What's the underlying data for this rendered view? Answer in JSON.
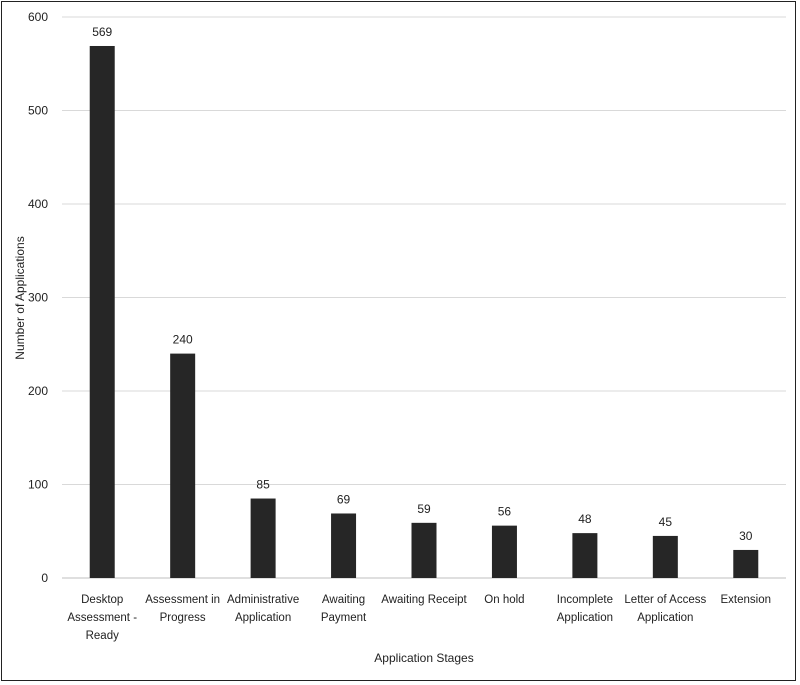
{
  "chart_data": {
    "type": "bar",
    "title": "",
    "xlabel": "Application Stages",
    "ylabel": "Number of Applications",
    "ylim": [
      0,
      600
    ],
    "yticks": [
      0,
      100,
      200,
      300,
      400,
      500,
      600
    ],
    "grid": true,
    "legend": "none",
    "bar_color": "#262626",
    "categories": [
      [
        "Desktop",
        "Assessment -",
        "Ready"
      ],
      [
        "Assessment in",
        "Progress"
      ],
      [
        "Administrative",
        "Application"
      ],
      [
        "Awaiting",
        "Payment"
      ],
      [
        "Awaiting Receipt"
      ],
      [
        "On hold"
      ],
      [
        "Incomplete",
        "Application"
      ],
      [
        "Letter of Access",
        "Application"
      ],
      [
        "Extension"
      ]
    ],
    "values": [
      569,
      240,
      85,
      69,
      59,
      56,
      48,
      45,
      30
    ]
  }
}
